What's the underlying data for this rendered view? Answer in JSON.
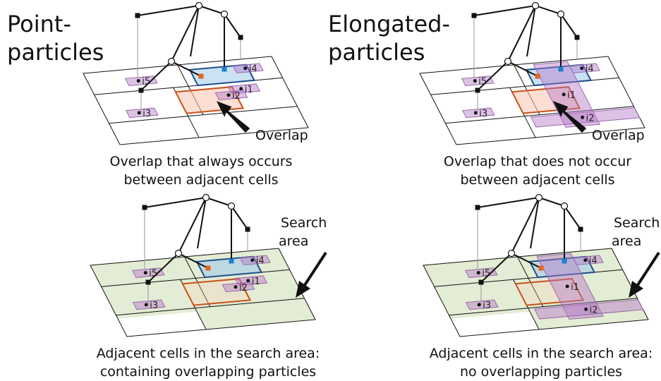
{
  "panels": [
    {
      "heading": [
        "Point-",
        "particles"
      ],
      "labels": [
        "i1",
        "i2",
        "i3",
        "i4",
        "i5"
      ],
      "callout": [
        "Overlap"
      ],
      "caption": [
        "Overlap that always occurs",
        "between adjacent cells"
      ]
    },
    {
      "heading": [
        "Elongated-",
        "particles"
      ],
      "labels": [
        "i1",
        "i2",
        "i3",
        "i4",
        "i5"
      ],
      "callout": [
        "Overlap"
      ],
      "caption": [
        "Overlap that does not occur",
        "between adjacent cells"
      ]
    },
    {
      "labels": [
        "i1",
        "i2",
        "i3",
        "i4",
        "i5"
      ],
      "callout": [
        "Search",
        "area"
      ],
      "caption": [
        "Adjacent cells in the search area:",
        "containing overlapping particles"
      ]
    },
    {
      "labels": [
        "i1",
        "i2",
        "i3",
        "i4",
        "i5"
      ],
      "callout": [
        "Search",
        "area"
      ],
      "caption": [
        "Adjacent cells in the search area:",
        "no overlapping particles"
      ]
    }
  ]
}
